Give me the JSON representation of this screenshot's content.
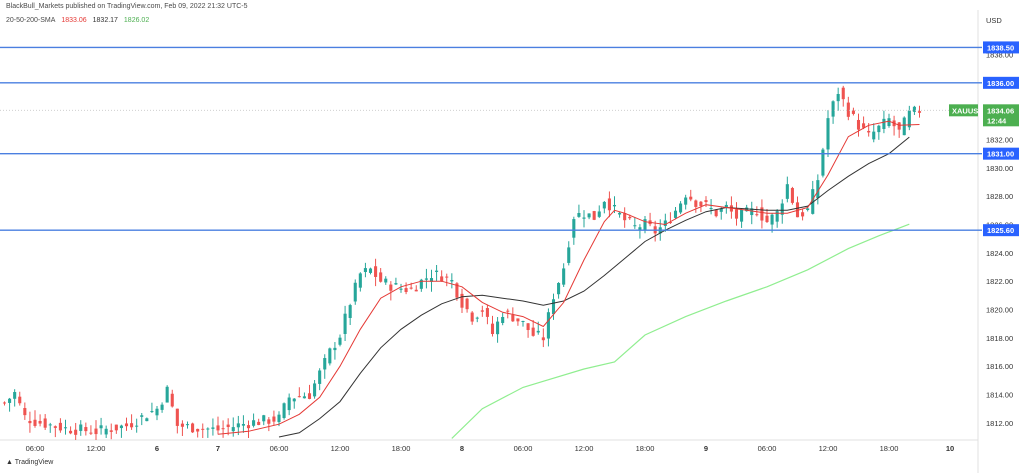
{
  "header": {
    "text": "BlackBull_Markets published on TradingView.com, Feb 09, 2022 21:32 UTC-5"
  },
  "legend": {
    "name": "20-50-200-SMA",
    "v1": "1833.06",
    "v2": "1832.17",
    "v3": "1826.02"
  },
  "branding": {
    "logo_text": "TradingView"
  },
  "axis": {
    "currency": "USD"
  },
  "colors": {
    "up": "#26a69a",
    "down": "#ef5350",
    "sma20": "#e53935",
    "sma50": "#333333",
    "sma200": "#90ee90",
    "hline": "#4a7fe0",
    "tag": "#2962ff",
    "symbol_tag": "#4caf50"
  },
  "chart_data": {
    "type": "candlestick",
    "symbol": "XAUUSD",
    "ylim": [
      1811,
      1841
    ],
    "y_ticks": [
      "1838.00",
      "1836.00",
      "1834.00",
      "1832.00",
      "1830.00",
      "1828.00",
      "1826.00",
      "1824.00",
      "1822.00",
      "1820.00",
      "1818.00",
      "1816.00",
      "1814.00",
      "1812.00"
    ],
    "y_tick_values": [
      1838,
      1836,
      1834,
      1832,
      1830,
      1828,
      1826,
      1824,
      1822,
      1820,
      1818,
      1816,
      1814,
      1812
    ],
    "x_ticks": [
      "06:00",
      "12:00",
      "6",
      "7",
      "06:00",
      "12:00",
      "18:00",
      "8",
      "06:00",
      "12:00",
      "18:00",
      "9",
      "06:00",
      "12:00",
      "18:00",
      "10"
    ],
    "x_tick_hours": [
      6,
      12,
      18,
      24,
      30,
      36,
      42,
      48,
      54,
      60,
      66,
      72,
      78,
      84,
      90,
      96
    ],
    "horizontal_lines": [
      {
        "price": 1838.5,
        "label": "1838.50"
      },
      {
        "price": 1836.0,
        "label": "1836.00"
      },
      {
        "price": 1831.0,
        "label": "1831.00"
      },
      {
        "price": 1825.6,
        "label": "1825.60"
      }
    ],
    "last_price": {
      "price": 1834.06,
      "label": "1834.06",
      "countdown": "12:44"
    },
    "candle_hour_start": 3,
    "candle_hour_end": 93,
    "candle_step_hours": 0.5,
    "price_path": [
      [
        3,
        1813.4
      ],
      [
        4,
        1814.1
      ],
      [
        5,
        1812.4
      ],
      [
        6,
        1812.1
      ],
      [
        9,
        1811.6
      ],
      [
        12,
        1811.4
      ],
      [
        15,
        1811.8
      ],
      [
        18,
        1813.0
      ],
      [
        19,
        1814.3
      ],
      [
        20,
        1811.8
      ],
      [
        24,
        1811.5
      ],
      [
        27,
        1812.0
      ],
      [
        30,
        1812.3
      ],
      [
        31,
        1813.8
      ],
      [
        33,
        1814.0
      ],
      [
        35,
        1817.0
      ],
      [
        36,
        1818.2
      ],
      [
        37,
        1820.5
      ],
      [
        38,
        1822.5
      ],
      [
        39,
        1822.8
      ],
      [
        40,
        1822.0
      ],
      [
        41,
        1821.7
      ],
      [
        42,
        1821.5
      ],
      [
        43,
        1821.4
      ],
      [
        44,
        1822.0
      ],
      [
        45,
        1822.5
      ],
      [
        46,
        1822.4
      ],
      [
        47,
        1822.0
      ],
      [
        48,
        1820.5
      ],
      [
        49,
        1819.5
      ],
      [
        50,
        1820.0
      ],
      [
        51,
        1818.3
      ],
      [
        52,
        1819.8
      ],
      [
        53,
        1819.5
      ],
      [
        54,
        1819.0
      ],
      [
        55,
        1818.2
      ],
      [
        56,
        1818.0
      ],
      [
        57,
        1821.0
      ],
      [
        58,
        1823.0
      ],
      [
        59,
        1826.6
      ],
      [
        60,
        1826.8
      ],
      [
        61,
        1826.5
      ],
      [
        62,
        1827.8
      ],
      [
        63,
        1827.0
      ],
      [
        64,
        1826.3
      ],
      [
        65,
        1825.8
      ],
      [
        66,
        1826.0
      ],
      [
        67,
        1825.5
      ],
      [
        68,
        1826.0
      ],
      [
        69,
        1827.0
      ],
      [
        70,
        1828.2
      ],
      [
        71,
        1827.6
      ],
      [
        72,
        1827.3
      ],
      [
        73,
        1826.8
      ],
      [
        74,
        1827.2
      ],
      [
        75,
        1826.5
      ],
      [
        76,
        1826.8
      ],
      [
        77,
        1827.0
      ],
      [
        78,
        1826.2
      ],
      [
        79,
        1826.8
      ],
      [
        80,
        1828.8
      ],
      [
        81,
        1826.6
      ],
      [
        82,
        1827.0
      ],
      [
        83,
        1829.2
      ],
      [
        84,
        1833.5
      ],
      [
        85,
        1835.4
      ],
      [
        86,
        1834.0
      ],
      [
        87,
        1833.0
      ],
      [
        88,
        1832.2
      ],
      [
        89,
        1832.8
      ],
      [
        90,
        1833.4
      ],
      [
        91,
        1832.5
      ],
      [
        92,
        1833.8
      ],
      [
        93,
        1834.06
      ]
    ],
    "sma20_path": [
      [
        24,
        1811.2
      ],
      [
        27,
        1811.4
      ],
      [
        30,
        1811.9
      ],
      [
        32,
        1812.6
      ],
      [
        34,
        1813.8
      ],
      [
        36,
        1816.0
      ],
      [
        38,
        1818.6
      ],
      [
        40,
        1820.8
      ],
      [
        42,
        1821.6
      ],
      [
        44,
        1822.0
      ],
      [
        46,
        1822.0
      ],
      [
        48,
        1821.6
      ],
      [
        50,
        1820.5
      ],
      [
        52,
        1819.8
      ],
      [
        54,
        1819.5
      ],
      [
        56,
        1818.8
      ],
      [
        58,
        1820.5
      ],
      [
        60,
        1823.5
      ],
      [
        62,
        1826.2
      ],
      [
        63,
        1827.0
      ],
      [
        64,
        1826.8
      ],
      [
        66,
        1826.2
      ],
      [
        68,
        1826.0
      ],
      [
        70,
        1826.8
      ],
      [
        72,
        1827.4
      ],
      [
        74,
        1827.2
      ],
      [
        76,
        1827.0
      ],
      [
        78,
        1826.8
      ],
      [
        80,
        1826.8
      ],
      [
        82,
        1827.2
      ],
      [
        84,
        1829.5
      ],
      [
        86,
        1832.2
      ],
      [
        88,
        1833.0
      ],
      [
        90,
        1833.3
      ],
      [
        91,
        1833.0
      ],
      [
        93,
        1833.06
      ]
    ],
    "sma50_path": [
      [
        30,
        1811.0
      ],
      [
        32,
        1811.3
      ],
      [
        34,
        1812.3
      ],
      [
        36,
        1813.5
      ],
      [
        38,
        1815.5
      ],
      [
        40,
        1817.3
      ],
      [
        42,
        1818.6
      ],
      [
        44,
        1819.6
      ],
      [
        46,
        1820.4
      ],
      [
        48,
        1820.9
      ],
      [
        50,
        1821.0
      ],
      [
        52,
        1820.8
      ],
      [
        54,
        1820.6
      ],
      [
        56,
        1820.3
      ],
      [
        58,
        1820.6
      ],
      [
        60,
        1821.3
      ],
      [
        62,
        1822.4
      ],
      [
        64,
        1823.6
      ],
      [
        66,
        1824.8
      ],
      [
        68,
        1825.6
      ],
      [
        70,
        1826.3
      ],
      [
        72,
        1826.9
      ],
      [
        74,
        1827.2
      ],
      [
        76,
        1827.1
      ],
      [
        78,
        1827.0
      ],
      [
        80,
        1827.0
      ],
      [
        82,
        1827.3
      ],
      [
        84,
        1828.4
      ],
      [
        86,
        1829.4
      ],
      [
        88,
        1830.3
      ],
      [
        90,
        1831.0
      ],
      [
        92,
        1832.17
      ]
    ],
    "sma200_path": [
      [
        47,
        1810.9
      ],
      [
        50,
        1813.0
      ],
      [
        54,
        1814.5
      ],
      [
        60,
        1815.8
      ],
      [
        63,
        1816.3
      ],
      [
        66,
        1818.2
      ],
      [
        70,
        1819.5
      ],
      [
        74,
        1820.6
      ],
      [
        78,
        1821.6
      ],
      [
        82,
        1822.8
      ],
      [
        86,
        1824.3
      ],
      [
        89,
        1825.2
      ],
      [
        92,
        1826.02
      ]
    ]
  }
}
